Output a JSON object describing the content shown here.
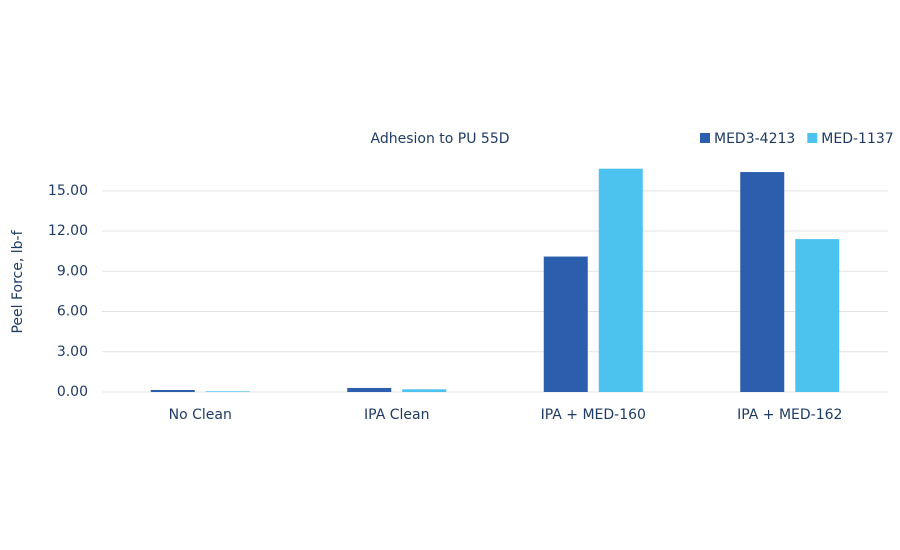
{
  "chart_data": {
    "type": "bar",
    "title": "Adhesion to PU 55D",
    "y_label": "Peel Force, lb-f",
    "categories": [
      "No Clean",
      "IPA Clean",
      "IPA + MED-160",
      "IPA + MED-162"
    ],
    "series": [
      {
        "name": "MED3-4213",
        "color": "#2b5fad",
        "values": [
          0.15,
          0.3,
          10.1,
          16.4
        ]
      },
      {
        "name": "MED-1137",
        "color": "#4cc3ee",
        "values": [
          0.05,
          0.2,
          16.65,
          11.4
        ]
      }
    ],
    "ylim": [
      0,
      17
    ],
    "yticks": [
      {
        "value": 0,
        "label": "0.00"
      },
      {
        "value": 3,
        "label": "3.00"
      },
      {
        "value": 6,
        "label": "6.00"
      },
      {
        "value": 9,
        "label": "9.00"
      },
      {
        "value": 12,
        "label": "12.00"
      },
      {
        "value": 15,
        "label": "15.00"
      }
    ],
    "grid": true,
    "legend": "top-right"
  }
}
